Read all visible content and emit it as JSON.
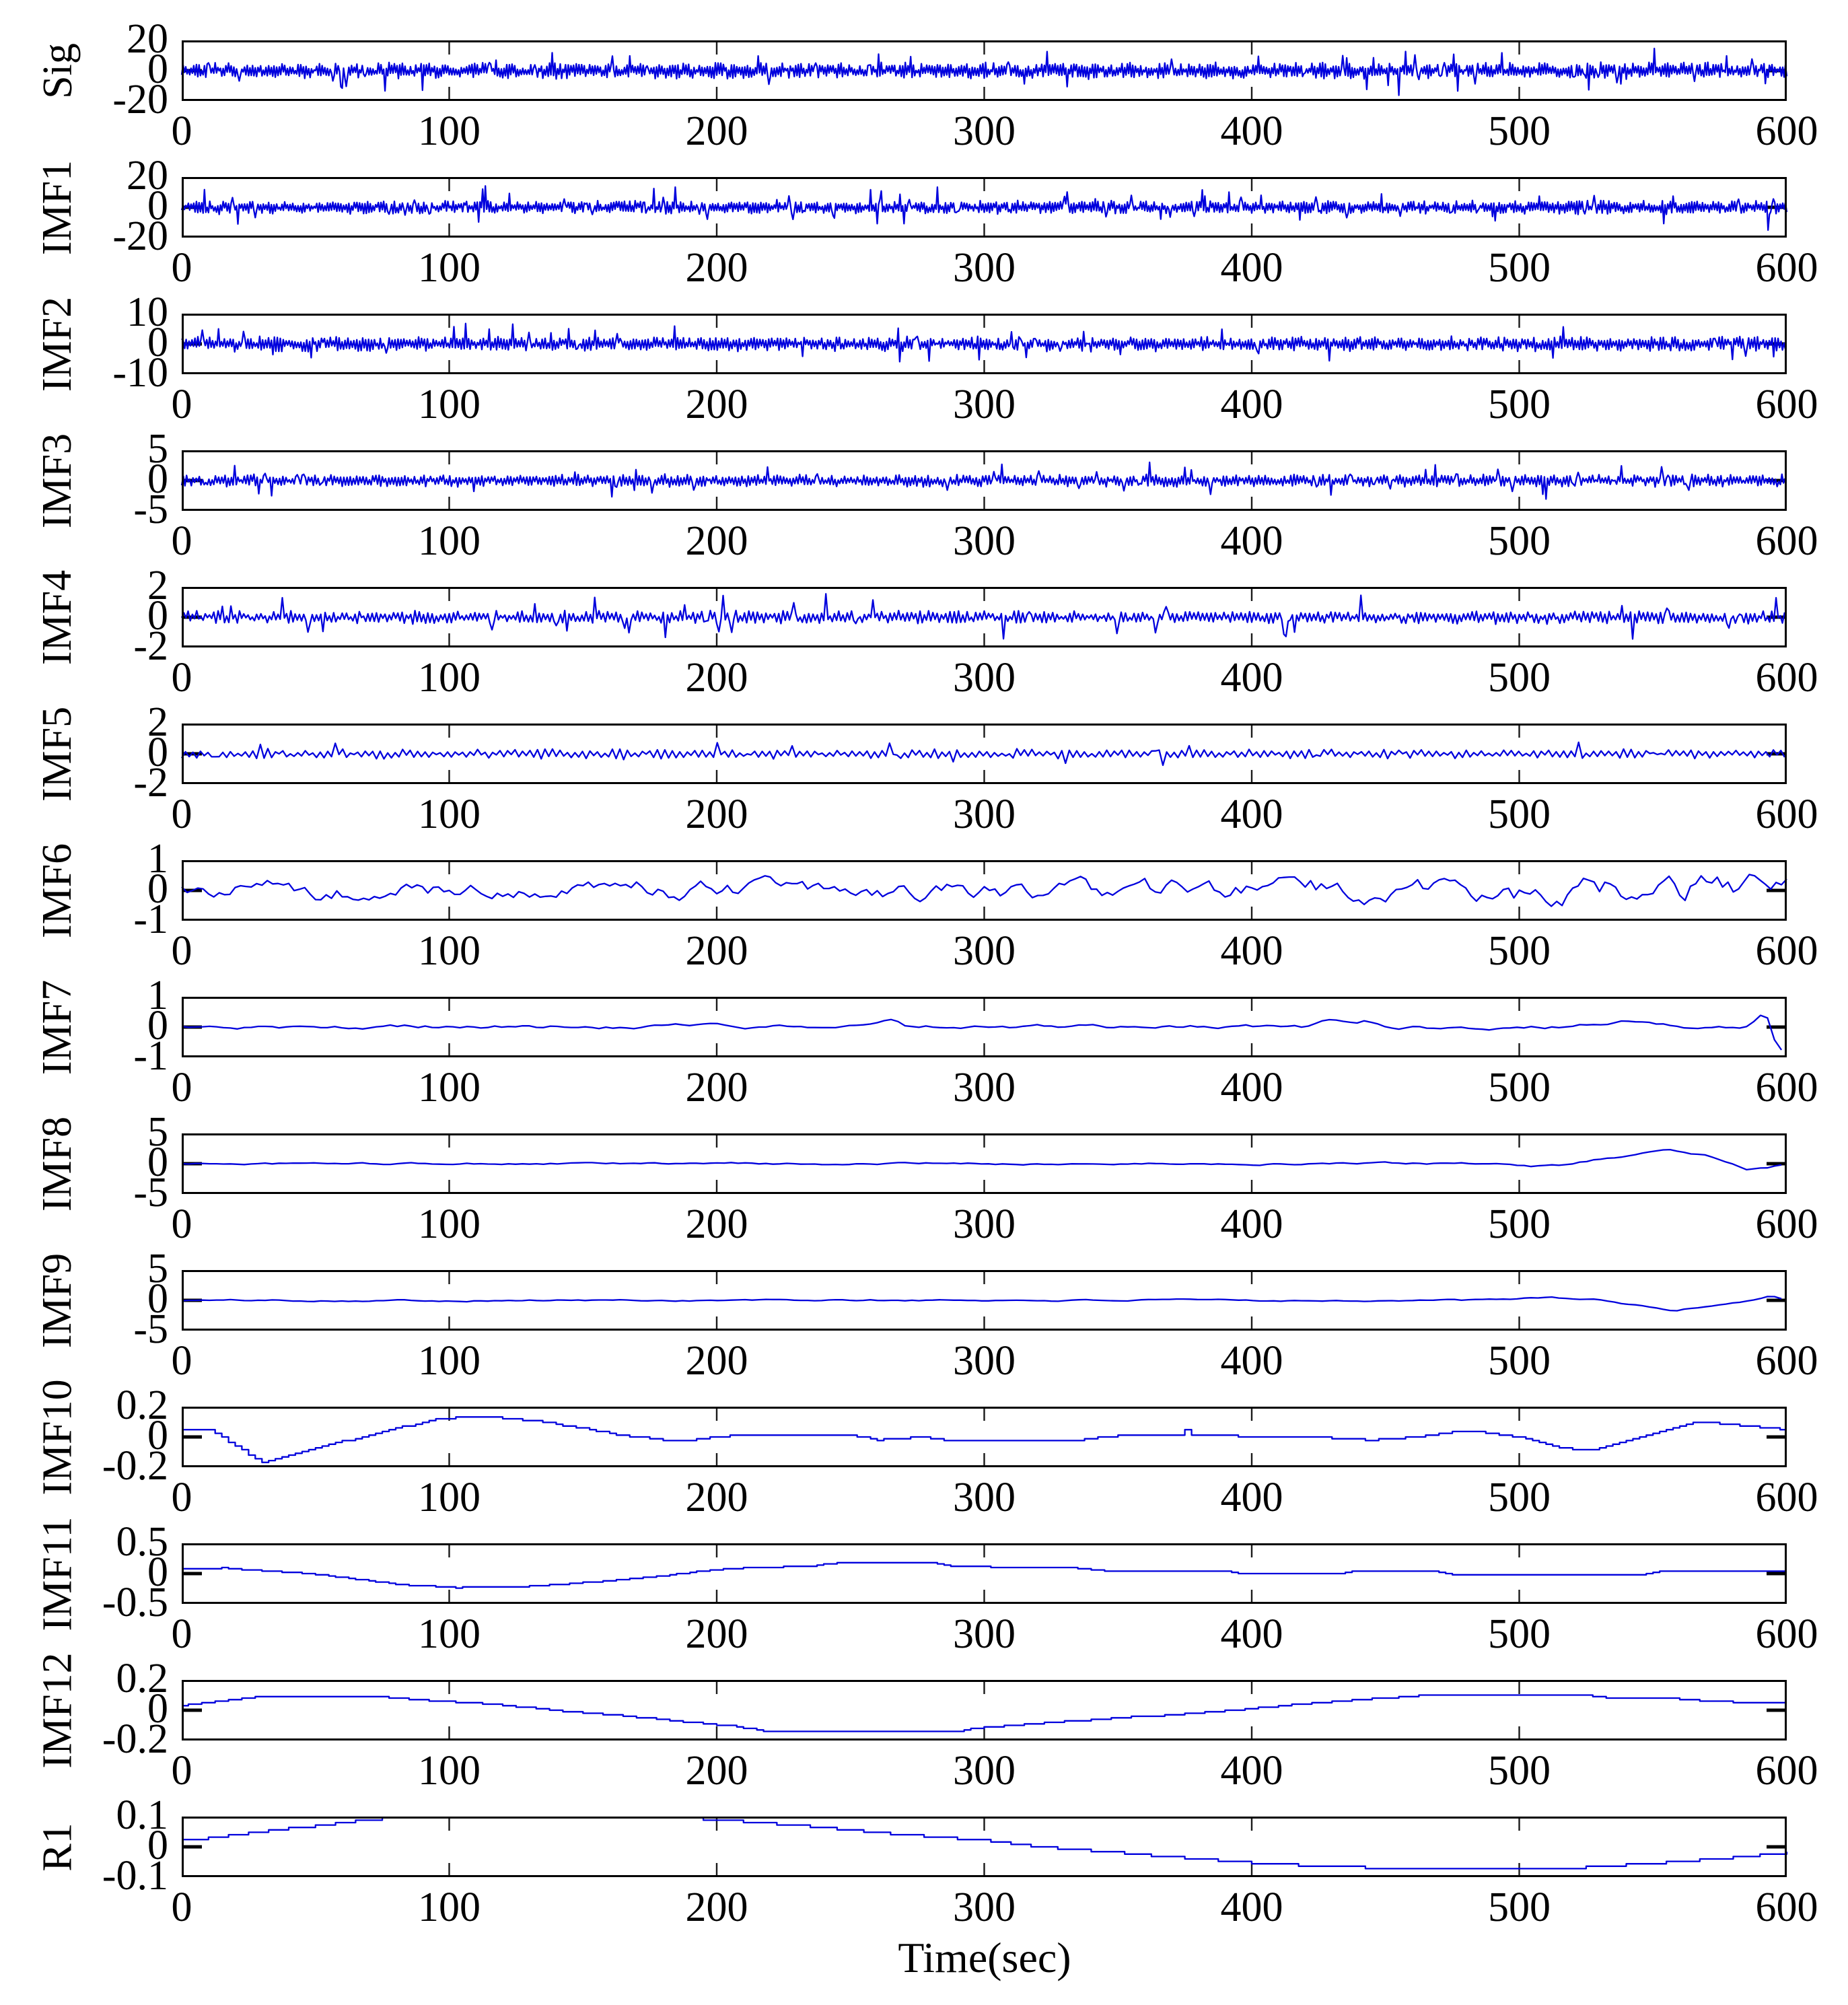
{
  "figure": {
    "xlabel": "Time(sec)",
    "background": "#ffffff",
    "line_color": "#0000dd",
    "axis_color": "#000000",
    "grid_color": "#1a1a1a"
  },
  "chart_data": {
    "type": "line",
    "title": "",
    "xlabel": "Time(sec)",
    "x_range": [
      0,
      600
    ],
    "x_ticks": [
      "0",
      "100",
      "200",
      "300",
      "400",
      "500",
      "600"
    ],
    "grid": "dashed-vertical",
    "legend": "none",
    "subplots": [
      {
        "label": "Sig",
        "yticks": [
          "20",
          "0",
          "-20"
        ],
        "ylim": [
          -20,
          20
        ],
        "series": {
          "kind": "spiky",
          "base": 4.6,
          "spike": 13,
          "spike_prob": 0.05,
          "seed": 11,
          "step": 0.5
        }
      },
      {
        "label": "IMF1",
        "yticks": [
          "20",
          "0",
          "-20"
        ],
        "ylim": [
          -20,
          20
        ],
        "series": {
          "kind": "spiky",
          "base": 3.8,
          "spike": 11,
          "spike_prob": 0.045,
          "seed": 23,
          "step": 0.5
        }
      },
      {
        "label": "IMF2",
        "yticks": [
          "10",
          "0",
          "-10"
        ],
        "ylim": [
          -10,
          10
        ],
        "series": {
          "kind": "spiky",
          "base": 2.1,
          "spike": 5.2,
          "spike_prob": 0.05,
          "seed": 37,
          "step": 0.55
        }
      },
      {
        "label": "IMF3",
        "yticks": [
          "5",
          "0",
          "-5"
        ],
        "ylim": [
          -5,
          5
        ],
        "series": {
          "kind": "spiky",
          "base": 0.9,
          "spike": 2.6,
          "spike_prob": 0.05,
          "seed": 41,
          "step": 0.6
        }
      },
      {
        "label": "IMF4",
        "yticks": [
          "2",
          "0",
          "-2"
        ],
        "ylim": [
          -2,
          2
        ],
        "series": {
          "kind": "spiky",
          "base": 0.38,
          "spike": 1.25,
          "spike_prob": 0.05,
          "seed": 53,
          "step": 0.8
        }
      },
      {
        "label": "IMF5",
        "yticks": [
          "2",
          "0",
          "-2"
        ],
        "ylim": [
          -2,
          2
        ],
        "series": {
          "kind": "spiky",
          "base": 0.28,
          "spike": 0.7,
          "spike_prob": 0.03,
          "seed": 67,
          "step": 1.4
        }
      },
      {
        "label": "IMF6",
        "yticks": [
          "1",
          "0",
          "-1"
        ],
        "ylim": [
          -1,
          1
        ],
        "series": {
          "kind": "wiggle",
          "amp": 0.3,
          "alpha": 0.72,
          "seed": 71,
          "step": 2,
          "env": {
            "x": [
              0,
              300,
              440,
              520,
              560,
              600
            ],
            "v": [
              1,
              1,
              1.2,
              1.5,
              1.8,
              1.3
            ]
          },
          "events": []
        }
      },
      {
        "label": "IMF7",
        "yticks": [
          "1",
          "0",
          "-1"
        ],
        "ylim": [
          -1,
          1
        ],
        "series": {
          "kind": "wiggle",
          "amp": 0.13,
          "alpha": 0.86,
          "seed": 83,
          "step": 2.6,
          "env": {
            "x": [
              0,
              600
            ],
            "v": [
              1,
              1
            ]
          },
          "events": [
            {
              "x": 265,
              "y": 0.28,
              "w": 7
            },
            {
              "x": 430,
              "y": 0.3,
              "w": 10
            },
            {
              "x": 443,
              "y": 0.22,
              "w": 8
            },
            {
              "x": 540,
              "y": 0.2,
              "w": 20
            },
            {
              "x": 592,
              "y": 0.5,
              "w": 6
            },
            {
              "x": 597,
              "y": -0.9,
              "w": 5
            }
          ]
        }
      },
      {
        "label": "IMF8",
        "yticks": [
          "5",
          "0",
          "-5"
        ],
        "ylim": [
          -5,
          5
        ],
        "series": {
          "kind": "wiggle",
          "amp": 0.2,
          "alpha": 0.78,
          "seed": 97,
          "step": 2.6,
          "env": {
            "x": [
              0,
              600
            ],
            "v": [
              1,
              1
            ]
          },
          "events": [
            {
              "x": 505,
              "y": -0.45,
              "w": 22
            },
            {
              "x": 556,
              "y": 2.3,
              "w": 36
            },
            {
              "x": 585,
              "y": -1.4,
              "w": 16
            }
          ]
        }
      },
      {
        "label": "IMF9",
        "yticks": [
          "5",
          "0",
          "-5"
        ],
        "ylim": [
          -5,
          5
        ],
        "series": {
          "kind": "wiggle",
          "amp": 0.17,
          "alpha": 0.78,
          "seed": 101,
          "step": 2.6,
          "env": {
            "x": [
              0,
              600
            ],
            "v": [
              1,
              1
            ]
          },
          "events": [
            {
              "x": 512,
              "y": 0.5,
              "w": 20
            },
            {
              "x": 558,
              "y": -1.7,
              "w": 28
            },
            {
              "x": 594,
              "y": 0.9,
              "w": 7
            }
          ]
        }
      },
      {
        "label": "IMF10",
        "yticks": [
          "0.2",
          "0",
          "-0.2"
        ],
        "ylim": [
          -0.2,
          0.2
        ],
        "series": {
          "kind": "anchors",
          "quantum": 0.012,
          "x": [
            0,
            10,
            30,
            55,
            95,
            112,
            135,
            165,
            185,
            205,
            250,
            260,
            275,
            290,
            330,
            350,
            372,
            375,
            378,
            420,
            445,
            460,
            480,
            500,
            512,
            525,
            540,
            565,
            580,
            600
          ],
          "y": [
            0.05,
            0.05,
            -0.17,
            -0.05,
            0.12,
            0.135,
            0.1,
            0.01,
            -0.03,
            0.01,
            0.01,
            -0.02,
            0.0,
            -0.03,
            -0.03,
            0.01,
            0.01,
            0.05,
            0.01,
            0.0,
            -0.02,
            0.0,
            0.04,
            0.0,
            -0.06,
            -0.09,
            -0.02,
            0.1,
            0.08,
            0.05
          ]
        }
      },
      {
        "label": "IMF11",
        "yticks": [
          "0.5",
          "0",
          "-0.5"
        ],
        "ylim": [
          -0.5,
          0.5
        ],
        "series": {
          "kind": "anchors",
          "quantum": 0.02,
          "x": [
            0,
            15,
            25,
            40,
            55,
            70,
            85,
            100,
            101,
            103,
            125,
            140,
            160,
            175,
            190,
            205,
            215,
            235,
            243,
            280,
            288,
            300,
            330,
            345,
            390,
            398,
            430,
            437,
            468,
            476,
            545,
            553,
            600
          ],
          "y": [
            0.08,
            0.09,
            0.06,
            0.02,
            -0.04,
            -0.12,
            -0.2,
            -0.22,
            -0.27,
            -0.22,
            -0.22,
            -0.18,
            -0.12,
            -0.06,
            0.02,
            0.08,
            0.1,
            0.12,
            0.17,
            0.17,
            0.12,
            0.11,
            0.1,
            0.04,
            0.04,
            -0.01,
            -0.01,
            0.03,
            0.03,
            -0.03,
            -0.03,
            0.04,
            0.04
          ]
        }
      },
      {
        "label": "IMF12",
        "yticks": [
          "0.2",
          "0",
          "-0.2"
        ],
        "ylim": [
          -0.2,
          0.2
        ],
        "series": {
          "kind": "anchors",
          "quantum": 0.01,
          "x": [
            0,
            8,
            18,
            30,
            75,
            85,
            100,
            115,
            130,
            145,
            160,
            175,
            190,
            205,
            215,
            222,
            288,
            296,
            310,
            330,
            350,
            365,
            378,
            392,
            405,
            418,
            432,
            448,
            462,
            468,
            522,
            532,
            545,
            558,
            570,
            585,
            600
          ],
          "y": [
            0.03,
            0.05,
            0.07,
            0.09,
            0.09,
            0.07,
            0.055,
            0.04,
            0.015,
            -0.01,
            -0.03,
            -0.055,
            -0.08,
            -0.105,
            -0.13,
            -0.145,
            -0.145,
            -0.12,
            -0.1,
            -0.075,
            -0.05,
            -0.035,
            -0.02,
            0.0,
            0.02,
            0.04,
            0.06,
            0.08,
            0.095,
            0.1,
            0.1,
            0.085,
            0.075,
            0.075,
            0.06,
            0.05,
            0.05
          ]
        }
      },
      {
        "label": "R1",
        "yticks": [
          "0.1",
          "0",
          "-0.1"
        ],
        "ylim": [
          -0.1,
          0.1
        ],
        "series": {
          "kind": "anchors",
          "quantum": 0.008,
          "x": [
            0,
            10,
            25,
            40,
            55,
            70,
            85,
            95,
            170,
            185,
            200,
            215,
            230,
            250,
            270,
            285,
            300,
            310,
            320,
            335,
            350,
            365,
            380,
            395,
            410,
            425,
            440,
            455,
            520,
            535,
            550,
            565,
            580,
            592,
            600
          ],
          "y": [
            0.02,
            0.03,
            0.045,
            0.06,
            0.075,
            0.09,
            0.098,
            0.1,
            0.1,
            0.095,
            0.09,
            0.08,
            0.07,
            0.055,
            0.04,
            0.03,
            0.02,
            0.01,
            0.0,
            -0.01,
            -0.02,
            -0.03,
            -0.04,
            -0.05,
            -0.058,
            -0.063,
            -0.068,
            -0.07,
            -0.07,
            -0.062,
            -0.055,
            -0.045,
            -0.035,
            -0.025,
            -0.02
          ]
        }
      }
    ]
  },
  "layout_note": "14 stacked time-series subplots of an EMD decomposition"
}
